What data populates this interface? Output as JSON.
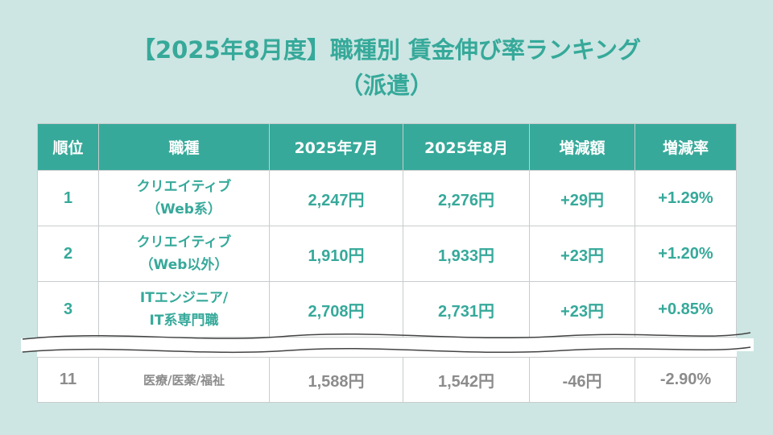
{
  "title": {
    "line1": "【2025年8月度】職種別 賃金伸び率ランキング",
    "line2": "（派遣）"
  },
  "table": {
    "headers": [
      "順位",
      "職種",
      "2025年7月",
      "2025年8月",
      "増減額",
      "増減率"
    ],
    "rows": [
      {
        "rank": "1",
        "job_line1": "クリエイティブ",
        "job_line2": "（Web系）",
        "jul": "2,247円",
        "aug": "2,276円",
        "diff": "+29円",
        "rate": "+1.29%"
      },
      {
        "rank": "2",
        "job_line1": "クリエイティブ",
        "job_line2": "（Web以外）",
        "jul": "1,910円",
        "aug": "1,933円",
        "diff": "+23円",
        "rate": "+1.20%"
      },
      {
        "rank": "3",
        "job_line1": "ITエンジニア/",
        "job_line2": "IT系専門職",
        "jul": "2,708円",
        "aug": "2,731円",
        "diff": "+23円",
        "rate": "+0.85%"
      }
    ],
    "bottom_row": {
      "rank": "11",
      "job": "医療/医薬/福祉",
      "jul": "1,588円",
      "aug": "1,542円",
      "diff": "-46円",
      "rate": "-2.90%"
    }
  },
  "colors": {
    "background": "#cde6e3",
    "accent": "#36a99a",
    "muted_text": "#8c8c8c"
  }
}
